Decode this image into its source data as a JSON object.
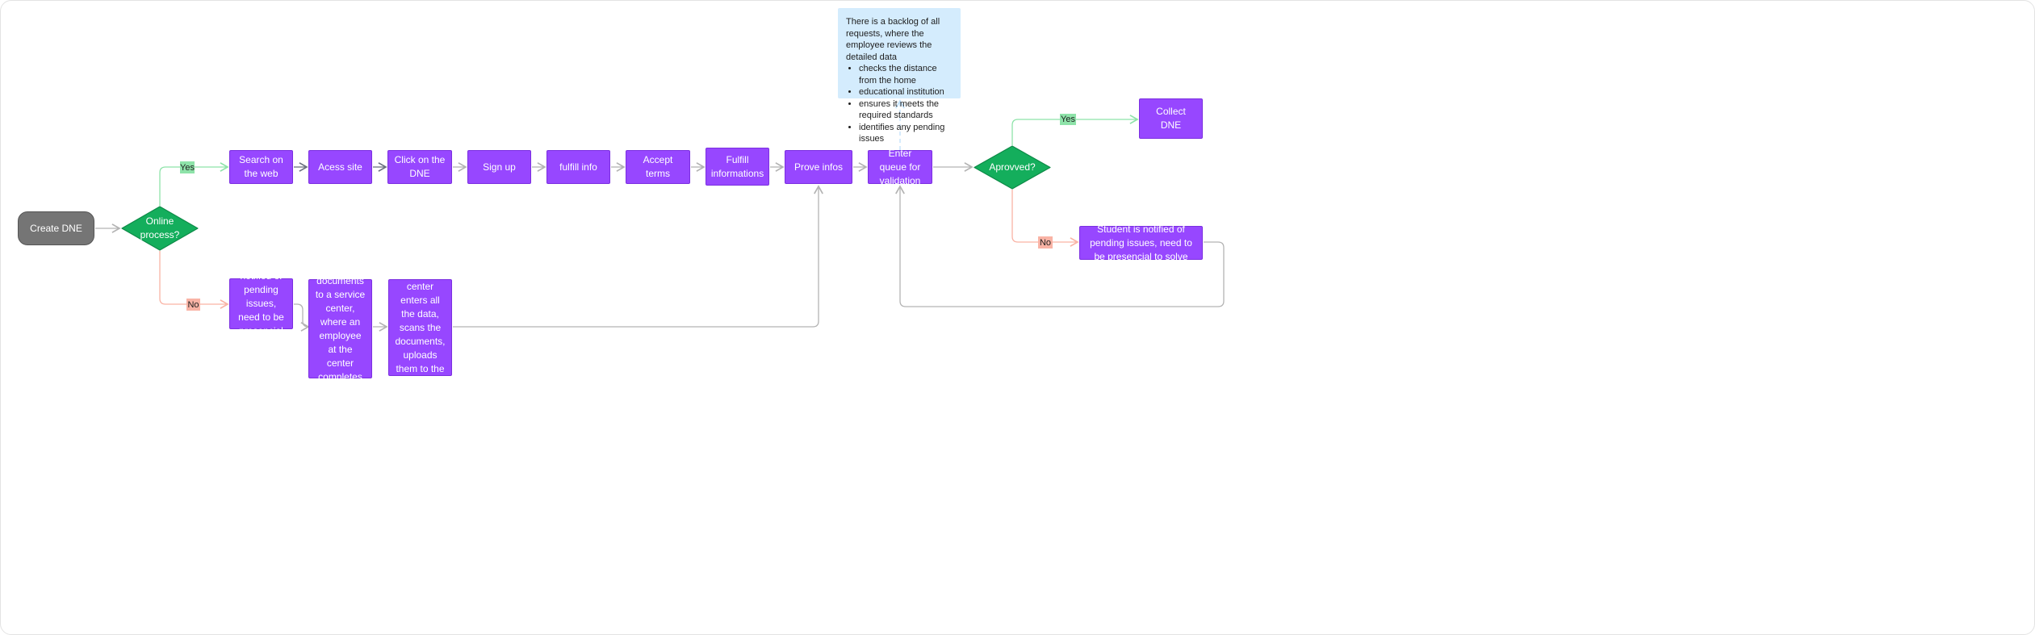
{
  "colors": {
    "process": "#9747ff",
    "start": "#757575",
    "decision": "#14ae5c",
    "yes": "#8ee3a9",
    "no": "#f9b3a5",
    "note": "#d4ecfd",
    "connector": "#b3b3b3"
  },
  "nodes": {
    "create": "Create DNE",
    "online": "Online process?",
    "search": "Search on the web",
    "access": "Acess site",
    "click": "Click on the DNE",
    "signup": "Sign up",
    "fulfill_info": "fulfill info",
    "accept": "Accept terms",
    "fulfill_informations": "Fulfill informations",
    "prove": "Prove infos",
    "queue": "Enter queue for validation",
    "approved": "Aprovved?",
    "collect": "Collect DNE",
    "notified_right": "Student is notified of pending issues, need to be presencial to solve",
    "notified_left": "Student is notified of pending issues, need to be presencial to solve",
    "submits": "The student submits the documents to a service center, where an employee at the center completes the registration.",
    "employee": "The employee at the service center enters all the data, scans the documents, uploads them to the system, and completes the registration."
  },
  "labels": {
    "yes1": "Yes",
    "no1": "No",
    "yes2": "Yes",
    "no2": "No"
  },
  "note": {
    "intro": "There is a backlog of all requests, where the employee reviews the detailed data",
    "items": [
      "checks the distance from the home",
      "educational institution",
      "ensures it meets the required standards",
      "identifies any pending issues"
    ]
  }
}
